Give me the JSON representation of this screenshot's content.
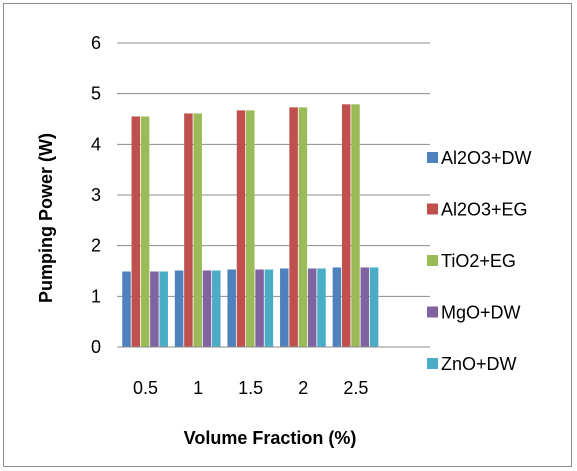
{
  "chart_data": {
    "type": "bar",
    "title": "",
    "xlabel": "Volume Fraction (%)",
    "ylabel": "Pumping Power (W)",
    "categories": [
      "0.5",
      "1",
      "1.5",
      "2",
      "2.5"
    ],
    "ylim": [
      0,
      6
    ],
    "yticks": [
      "0",
      "1",
      "2",
      "3",
      "4",
      "5",
      "6"
    ],
    "grid": true,
    "legend_position": "right",
    "series": [
      {
        "name": "Al2O3+DW",
        "color": "#4f81bd",
        "values": [
          1.49,
          1.51,
          1.53,
          1.55,
          1.57
        ]
      },
      {
        "name": "Al2O3+EG",
        "color": "#c0504d",
        "values": [
          4.55,
          4.61,
          4.67,
          4.73,
          4.79
        ]
      },
      {
        "name": "TiO2+EG",
        "color": "#9bbb59",
        "values": [
          4.55,
          4.61,
          4.67,
          4.73,
          4.79
        ]
      },
      {
        "name": "MgO+DW",
        "color": "#8064a2",
        "values": [
          1.49,
          1.51,
          1.53,
          1.55,
          1.57
        ]
      },
      {
        "name": "ZnO+DW",
        "color": "#4bacc6",
        "values": [
          1.49,
          1.51,
          1.53,
          1.55,
          1.57
        ]
      }
    ]
  }
}
